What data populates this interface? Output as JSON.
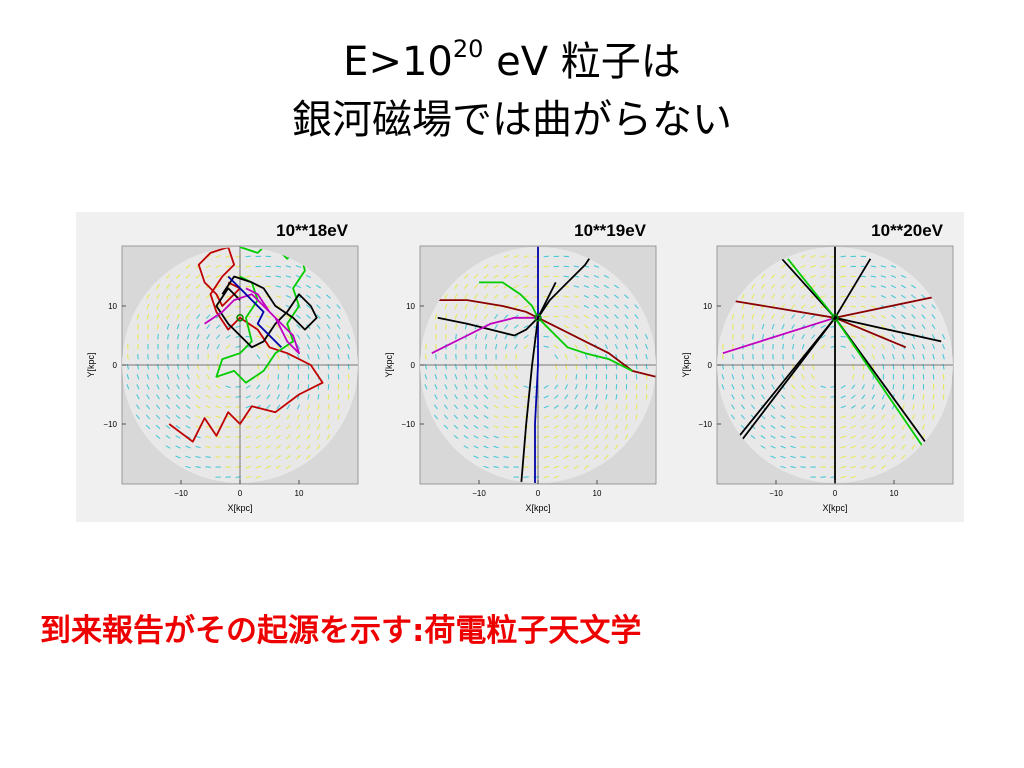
{
  "title": {
    "line1_pre": "E>10",
    "line1_sup": "20",
    "line1_post": " eV 粒子は",
    "line2": "銀河磁場では曲がらない"
  },
  "panels": [
    {
      "label": "10**18eV",
      "xlabel": "X[kpc]",
      "ylabel": "Y[kpc]",
      "xticks": [
        "−10",
        "0",
        "10"
      ],
      "yticks": [
        "10",
        "0",
        "−10"
      ]
    },
    {
      "label": "10**19eV",
      "xlabel": "X[kpc]",
      "ylabel": "Y[kpc]",
      "xticks": [
        "−10",
        "0",
        "10"
      ],
      "yticks": [
        "10",
        "0",
        "−10"
      ]
    },
    {
      "label": "10**20eV",
      "xlabel": "X[kpc]",
      "ylabel": "Y[kpc]",
      "xticks": [
        "−10",
        "0",
        "10"
      ],
      "yticks": [
        "10",
        "0",
        "−10"
      ]
    }
  ],
  "colors": {
    "disk_outer": "#d8d8d8",
    "disk_inner": "#e8e8e8",
    "field_yellow": "#e8e85a",
    "field_cyan": "#4ac8d8",
    "track_red": "#c00000",
    "track_green": "#00cc00",
    "track_black": "#000000",
    "track_magenta": "#c000c0",
    "track_blue": "#0000aa",
    "track_darkred": "#8b0000"
  },
  "bottom_text": "到来報告がその起源を示す:荷電粒子天文学"
}
